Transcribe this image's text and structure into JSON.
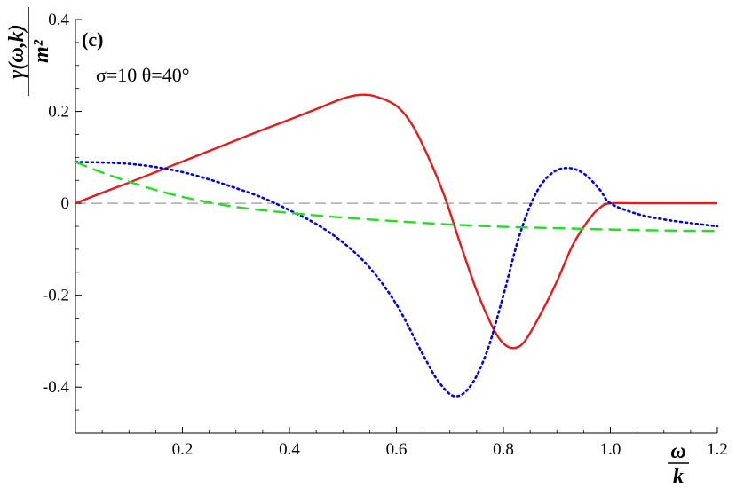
{
  "chart_data": {
    "type": "line",
    "panel_label": "(c)",
    "annotation": "σ=10  θ=40°",
    "xlabel": {
      "numerator": "ω",
      "denominator": "k"
    },
    "ylabel": {
      "numerator": "γ(ω,k)",
      "denominator": "m²"
    },
    "xlim": [
      0,
      1.2
    ],
    "ylim": [
      -0.5,
      0.4
    ],
    "xticks": [
      {
        "value": 0.2,
        "label": "0.2"
      },
      {
        "value": 0.4,
        "label": "0.4"
      },
      {
        "value": 0.6,
        "label": "0.6"
      },
      {
        "value": 0.8,
        "label": "0.8"
      },
      {
        "value": 1.0,
        "label": "1.0"
      },
      {
        "value": 1.2,
        "label": "1.2"
      }
    ],
    "yticks": [
      {
        "value": 0.4,
        "label": "0.4"
      },
      {
        "value": 0.2,
        "label": "0.2"
      },
      {
        "value": 0,
        "label": "0"
      },
      {
        "value": -0.2,
        "label": "-0.2"
      },
      {
        "value": -0.4,
        "label": "-0.4"
      }
    ],
    "zero_line": true,
    "grid": false,
    "series": [
      {
        "id": "red-solid",
        "color": "#e41a1c",
        "style": "solid",
        "x": [
          0.0,
          0.05,
          0.1,
          0.15,
          0.2,
          0.25,
          0.3,
          0.35,
          0.4,
          0.45,
          0.5,
          0.53,
          0.56,
          0.6,
          0.63,
          0.66,
          0.69,
          0.72,
          0.75,
          0.78,
          0.8,
          0.82,
          0.84,
          0.87,
          0.9,
          0.93,
          0.96,
          0.98,
          1.0,
          1.05,
          1.1,
          1.15,
          1.2
        ],
        "y": [
          0.0,
          0.023,
          0.045,
          0.068,
          0.091,
          0.114,
          0.137,
          0.16,
          0.182,
          0.205,
          0.228,
          0.236,
          0.233,
          0.212,
          0.17,
          0.1,
          0.015,
          -0.09,
          -0.19,
          -0.27,
          -0.305,
          -0.315,
          -0.3,
          -0.24,
          -0.17,
          -0.09,
          -0.035,
          -0.01,
          0.0,
          0.0,
          0.0,
          0.0,
          0.0
        ]
      },
      {
        "id": "blue-dotted",
        "color": "#0000dd",
        "style": "dotted",
        "x": [
          0.0,
          0.05,
          0.1,
          0.15,
          0.2,
          0.25,
          0.3,
          0.35,
          0.4,
          0.45,
          0.5,
          0.55,
          0.6,
          0.65,
          0.68,
          0.71,
          0.74,
          0.77,
          0.8,
          0.83,
          0.86,
          0.89,
          0.92,
          0.95,
          0.98,
          1.0,
          1.05,
          1.1,
          1.15,
          1.2
        ],
        "y": [
          0.09,
          0.089,
          0.086,
          0.079,
          0.068,
          0.052,
          0.033,
          0.012,
          -0.015,
          -0.045,
          -0.085,
          -0.14,
          -0.22,
          -0.33,
          -0.39,
          -0.42,
          -0.395,
          -0.32,
          -0.2,
          -0.07,
          0.02,
          0.065,
          0.077,
          0.065,
          0.03,
          0.0,
          -0.023,
          -0.035,
          -0.043,
          -0.05
        ]
      },
      {
        "id": "green-dashed",
        "color": "#22dd22",
        "style": "dashed",
        "x": [
          0.0,
          0.05,
          0.1,
          0.15,
          0.2,
          0.25,
          0.3,
          0.35,
          0.4,
          0.5,
          0.6,
          0.7,
          0.8,
          0.9,
          1.0,
          1.1,
          1.2
        ],
        "y": [
          0.09,
          0.067,
          0.047,
          0.029,
          0.014,
          0.002,
          -0.008,
          -0.015,
          -0.021,
          -0.031,
          -0.039,
          -0.046,
          -0.051,
          -0.054,
          -0.057,
          -0.059,
          -0.06
        ]
      }
    ]
  }
}
